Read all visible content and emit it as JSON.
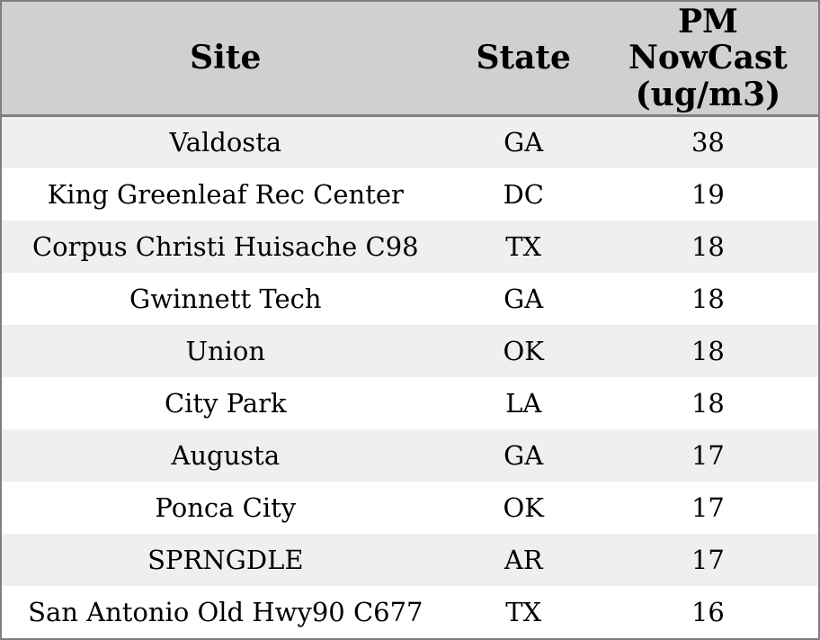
{
  "chart_data": {
    "type": "table",
    "columns": [
      {
        "id": "site",
        "label": "Site",
        "header_lines": [
          "Site"
        ]
      },
      {
        "id": "state",
        "label": "State",
        "header_lines": [
          "State"
        ]
      },
      {
        "id": "pm",
        "label": "PM NowCast (ug/m3)",
        "header_lines": [
          "PM",
          "NowCast",
          "(ug/m3)"
        ]
      }
    ],
    "rows": [
      {
        "site": "Valdosta",
        "state": "GA",
        "pm": 38
      },
      {
        "site": "King Greenleaf Rec Center",
        "state": "DC",
        "pm": 19
      },
      {
        "site": "Corpus Christi Huisache C98",
        "state": "TX",
        "pm": 18
      },
      {
        "site": "Gwinnett Tech",
        "state": "GA",
        "pm": 18
      },
      {
        "site": "Union",
        "state": "OK",
        "pm": 18
      },
      {
        "site": "City Park",
        "state": "LA",
        "pm": 18
      },
      {
        "site": "Augusta",
        "state": "GA",
        "pm": 17
      },
      {
        "site": "Ponca City",
        "state": "OK",
        "pm": 17
      },
      {
        "site": "SPRNGDLE",
        "state": "AR",
        "pm": 17
      },
      {
        "site": "San Antonio Old Hwy90 C677",
        "state": "TX",
        "pm": 16
      }
    ],
    "layout": {
      "row_striping": "odd-rows-shaded",
      "alignment": "center"
    }
  },
  "style": {
    "header_bg": "#d0d0d0",
    "row_alt_bg": "#efefef",
    "row_bg": "#ffffff",
    "border_color": "#7f7f7f",
    "text_color": "#000000"
  }
}
